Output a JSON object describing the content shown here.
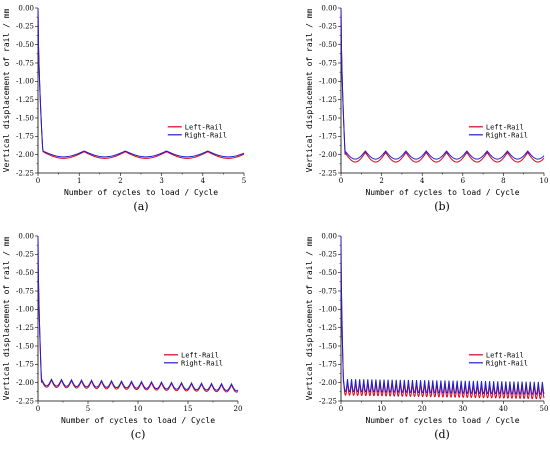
{
  "colors": {
    "left": "#d6001c",
    "right": "#1f1fd0",
    "axis": "#000000"
  },
  "chart_data": [
    {
      "type": "line",
      "panel_label": "(a)",
      "xlabel": "Number of cycles to load / Cycle",
      "ylabel": "Vertical displacement of rail / mm",
      "xlim": [
        0,
        5
      ],
      "ylim": [
        -2.25,
        0.0
      ],
      "x_ticks": [
        0,
        1,
        2,
        3,
        4,
        5
      ],
      "x_tick_labels": [
        "0",
        "1",
        "2",
        "3",
        "4",
        "5"
      ],
      "y_ticks": [
        0.0,
        -0.25,
        -0.5,
        -0.75,
        -1.0,
        -1.25,
        -1.5,
        -1.75,
        -2.0,
        -2.25
      ],
      "y_tick_labels": [
        "0.00",
        "-0.25",
        "-0.50",
        "-0.75",
        "-1.00",
        "-1.25",
        "-1.50",
        "-1.75",
        "-2.00",
        "-2.25"
      ],
      "legend_position": "center-right",
      "cycles": 5,
      "drop_x": 0.12,
      "series": [
        {
          "name": "Left-Rail",
          "settle": -2.0,
          "trough": -2.05,
          "peak": -1.96,
          "growth": 0.0
        },
        {
          "name": "Right-Rail",
          "settle": -1.98,
          "trough": -2.03,
          "peak": -1.95,
          "growth": 0.0
        }
      ]
    },
    {
      "type": "line",
      "panel_label": "(b)",
      "xlabel": "Number of cycles to load / Cycle",
      "ylabel": "Vertical displacement of rail / mm",
      "xlim": [
        0,
        10
      ],
      "ylim": [
        -2.25,
        0.0
      ],
      "x_ticks": [
        0,
        2,
        4,
        6,
        8,
        10
      ],
      "x_tick_labels": [
        "0",
        "2",
        "4",
        "6",
        "8",
        "10"
      ],
      "y_ticks": [
        0.0,
        -0.25,
        -0.5,
        -0.75,
        -1.0,
        -1.25,
        -1.5,
        -1.75,
        -2.0,
        -2.25
      ],
      "y_tick_labels": [
        "0.00",
        "-0.25",
        "-0.50",
        "-0.75",
        "-1.00",
        "-1.25",
        "-1.50",
        "-1.75",
        "-2.00",
        "-2.25"
      ],
      "legend_position": "center-right",
      "cycles": 10,
      "drop_x": 0.2,
      "series": [
        {
          "name": "Left-Rail",
          "settle": -2.0,
          "trough": -2.1,
          "peak": -1.97,
          "growth": 0.0
        },
        {
          "name": "Right-Rail",
          "settle": -1.98,
          "trough": -2.06,
          "peak": -1.95,
          "growth": 0.0
        }
      ]
    },
    {
      "type": "line",
      "panel_label": "(c)",
      "xlabel": "Number of cycles to load / Cycle",
      "ylabel": "Vertical displacement of rail / mm",
      "xlim": [
        0,
        20
      ],
      "ylim": [
        -2.25,
        0.0
      ],
      "x_ticks": [
        0,
        5,
        10,
        15,
        20
      ],
      "x_tick_labels": [
        "0",
        "5",
        "10",
        "15",
        "20"
      ],
      "y_ticks": [
        0.0,
        -0.25,
        -0.5,
        -0.75,
        -1.0,
        -1.25,
        -1.5,
        -1.75,
        -2.0,
        -2.25
      ],
      "y_tick_labels": [
        "0.00",
        "-0.25",
        "-0.50",
        "-0.75",
        "-1.00",
        "-1.25",
        "-1.50",
        "-1.75",
        "-2.00",
        "-2.25"
      ],
      "legend_position": "center-right",
      "cycles": 20,
      "drop_x": 0.35,
      "series": [
        {
          "name": "Left-Rail",
          "settle": -2.0,
          "trough": -2.06,
          "peak": -1.96,
          "growth": -0.07
        },
        {
          "name": "Right-Rail",
          "settle": -1.98,
          "trough": -2.04,
          "peak": -1.95,
          "growth": -0.07
        }
      ]
    },
    {
      "type": "line",
      "panel_label": "(d)",
      "xlabel": "Number of cycles to load / Cycle",
      "ylabel": "Vertical displacement of rail / mm",
      "xlim": [
        0,
        50
      ],
      "ylim": [
        -2.25,
        0.0
      ],
      "x_ticks": [
        0,
        10,
        20,
        30,
        40,
        50
      ],
      "x_tick_labels": [
        "0",
        "10",
        "20",
        "30",
        "40",
        "50"
      ],
      "y_ticks": [
        0.0,
        -0.25,
        -0.5,
        -0.75,
        -1.0,
        -1.25,
        -1.5,
        -1.75,
        -2.0,
        -2.25
      ],
      "y_tick_labels": [
        "0.00",
        "-0.25",
        "-0.50",
        "-0.75",
        "-1.00",
        "-1.25",
        "-1.50",
        "-1.75",
        "-2.00",
        "-2.25"
      ],
      "legend_position": "center-right",
      "cycles": 50,
      "drop_x": 0.6,
      "series": [
        {
          "name": "Left-Rail",
          "settle": -2.0,
          "trough": -2.17,
          "peak": -1.97,
          "growth": -0.05
        },
        {
          "name": "Right-Rail",
          "settle": -1.98,
          "trough": -2.12,
          "peak": -1.95,
          "growth": -0.04
        }
      ]
    }
  ]
}
